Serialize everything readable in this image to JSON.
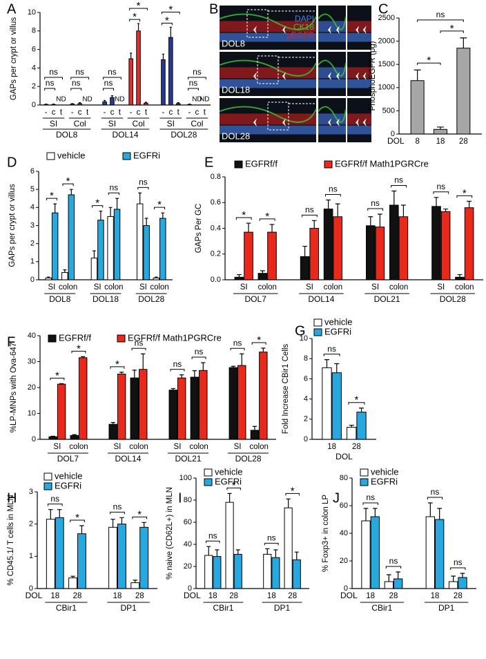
{
  "chart_data": [
    {
      "type": "bar",
      "panel": "A",
      "ylabel": "GAPs per crypt or villus",
      "ylim": [
        0,
        10
      ],
      "yticks": [
        0,
        2,
        4,
        6,
        8,
        10
      ],
      "categories": [
        "-",
        "c",
        "t",
        "-",
        "c",
        "t",
        "-",
        "c",
        "t",
        "-",
        "c",
        "t",
        "-",
        "c",
        "t",
        "-",
        "c",
        "t"
      ],
      "subgroups": [
        "SI",
        "Col",
        "SI",
        "Col",
        "SI",
        "Col"
      ],
      "groups": [
        "DOL8",
        "DOL14",
        "DOL28"
      ],
      "subgroup_colors": [
        "#e03030",
        "#e03030",
        "#2a3a94",
        "#e03030",
        "#2a3a94",
        "#e03030"
      ],
      "values": [
        0.05,
        0.05,
        null,
        0.1,
        0.15,
        null,
        0.35,
        0.8,
        null,
        5.0,
        8.0,
        0.2,
        4.9,
        7.3,
        0.15,
        0.05,
        null,
        null
      ],
      "errors": [
        0.05,
        0.05,
        null,
        0.05,
        0.1,
        null,
        0.15,
        0.2,
        null,
        0.6,
        0.8,
        0.1,
        0.6,
        1.1,
        0.1,
        0.05,
        null,
        null
      ],
      "value_labels": [
        null,
        null,
        "ND",
        null,
        null,
        "ND",
        null,
        null,
        "ND",
        null,
        null,
        null,
        null,
        null,
        null,
        null,
        "ND",
        "ND"
      ],
      "annotations": [
        [
          "ns",
          "ns"
        ],
        [
          "ns",
          "ns"
        ],
        [
          "ns",
          "ns"
        ],
        [
          "*",
          "*"
        ],
        [
          "*",
          "*"
        ],
        [
          "ns",
          "ns"
        ]
      ]
    },
    {
      "type": "image",
      "panel": "B",
      "channels": [
        "DAPI",
        "CK18",
        "pEGFR"
      ],
      "channel_colors": [
        "#4a7ef0",
        "#3cc43c",
        "#e02020"
      ],
      "rows": [
        "DOL8",
        "DOL18",
        "DOL28"
      ]
    },
    {
      "type": "bar",
      "panel": "C",
      "ylabel": "PhosphoEGFR (pg)",
      "xlabel": "DOL",
      "categories": [
        "8",
        "18",
        "28"
      ],
      "values": [
        1150,
        100,
        1850
      ],
      "errors": [
        230,
        50,
        220
      ],
      "color": "#a6a6a6",
      "ylim": [
        0,
        2500
      ],
      "yticks": [
        0,
        500,
        1000,
        1500,
        2000,
        2500
      ],
      "annotations": [
        "*",
        "*",
        "ns"
      ]
    },
    {
      "type": "bar",
      "panel": "D",
      "ylabel": "GAPs per crypt or villus",
      "ylim": [
        0,
        6
      ],
      "yticks": [
        0,
        1,
        2,
        3,
        4,
        5,
        6
      ],
      "categories": [
        "SI",
        "colon",
        "SI",
        "colon",
        "SI",
        "colon"
      ],
      "groups": [
        "DOL8",
        "DOL18",
        "DOL28"
      ],
      "series": [
        {
          "name": "vehicle",
          "color": "#ffffff",
          "values": [
            0.1,
            0.4,
            1.2,
            3.5,
            4.2,
            0.1
          ],
          "errors": [
            0.05,
            0.15,
            0.4,
            0.5,
            0.6,
            0.05
          ]
        },
        {
          "name": "EGFRi",
          "color": "#29a8e0",
          "values": [
            3.7,
            4.7,
            3.3,
            3.9,
            3.0,
            3.4
          ],
          "errors": [
            0.5,
            0.3,
            0.5,
            0.6,
            0.4,
            0.3
          ]
        }
      ],
      "annotations": [
        "*",
        "*",
        "*",
        "ns",
        "ns",
        "*"
      ]
    },
    {
      "type": "bar",
      "panel": "E",
      "ylabel": "GAPs Per GC",
      "ylim": [
        0,
        0.8
      ],
      "yticks": [
        {
          "value": 0,
          "label": "0.0"
        },
        0.2,
        0.4,
        0.6,
        0.8
      ],
      "categories": [
        "SI",
        "colon",
        "SI",
        "colon",
        "SI",
        "colon",
        "SI",
        "colon"
      ],
      "groups": [
        "DOL7",
        "DOL14",
        "DOL21",
        "DOL28"
      ],
      "series": [
        {
          "name": "EGFRf/f",
          "color": "#111111",
          "values": [
            0.02,
            0.05,
            0.18,
            0.55,
            0.42,
            0.58,
            0.57,
            0.02
          ],
          "errors": [
            0.02,
            0.02,
            0.08,
            0.07,
            0.07,
            0.11,
            0.07,
            0.02
          ]
        },
        {
          "name": "EGFRf/f Math1PGRCre",
          "color": "#e8291c",
          "values": [
            0.37,
            0.37,
            0.4,
            0.49,
            0.41,
            0.49,
            0.53,
            0.56
          ],
          "errors": [
            0.07,
            0.06,
            0.06,
            0.1,
            0.1,
            0.09,
            0.02,
            0.05
          ]
        }
      ],
      "annotations": [
        "*",
        "*",
        "ns",
        "ns",
        "ns",
        "ns",
        "ns",
        "*"
      ]
    },
    {
      "type": "bar",
      "panel": "F",
      "ylabel": "%LP-MNPs with Ova-647",
      "ylim": [
        0,
        40
      ],
      "yticks": [
        0,
        10,
        20,
        30,
        40
      ],
      "categories": [
        "SI",
        "colon",
        "SI",
        "colon",
        "SI",
        "colon",
        "SI",
        "colon"
      ],
      "groups": [
        "DOL7",
        "DOL14",
        "DOL21",
        "DOL28"
      ],
      "series": [
        {
          "name": "EGFRf/f",
          "color": "#111111",
          "values": [
            1,
            1.5,
            5.8,
            23.7,
            19,
            24,
            27.7,
            3.5
          ],
          "errors": [
            0.2,
            0.3,
            0.7,
            3,
            0.6,
            2.5,
            0.5,
            1.5
          ]
        },
        {
          "name": "EGFRf/f Math1PGRCre",
          "color": "#e8291c",
          "values": [
            21.3,
            31.5,
            25.2,
            27,
            23.7,
            26.6,
            28.5,
            33.7
          ],
          "errors": [
            0.2,
            0.4,
            0.7,
            6,
            1.2,
            3,
            4.5,
            1.5
          ]
        }
      ],
      "annotations": [
        "*",
        "*",
        "*",
        "ns",
        "ns",
        "ns",
        "ns",
        "*"
      ]
    },
    {
      "type": "bar",
      "panel": "G",
      "ylabel": "Fold Increase CBir1 Cells",
      "xlabel": "DOL",
      "ylim": [
        0,
        10
      ],
      "yticks": [
        0,
        2,
        4,
        6,
        8,
        10
      ],
      "categories": [
        "18",
        "28"
      ],
      "series": [
        {
          "name": "vehicle",
          "color": "#ffffff",
          "values": [
            7.1,
            1.2
          ],
          "errors": [
            0.8,
            0.2
          ]
        },
        {
          "name": "EGFRi",
          "color": "#29a8e0",
          "values": [
            6.6,
            2.7
          ],
          "errors": [
            0.9,
            0.4
          ]
        }
      ],
      "annotations": [
        "ns",
        "*"
      ]
    },
    {
      "type": "bar",
      "panel": "H",
      "ylabel": "% CD45.1/ T cells in MLN",
      "xlabel": "DOL",
      "ylim": [
        0,
        3
      ],
      "yticks": [
        0,
        1,
        2,
        3
      ],
      "categories": [
        "18",
        "28",
        "18",
        "28"
      ],
      "groups": [
        "CBir1",
        "DP1"
      ],
      "series": [
        {
          "name": "vehicle",
          "color": "#ffffff",
          "values": [
            2.15,
            0.33,
            1.9,
            0.18
          ],
          "errors": [
            0.3,
            0.05,
            0.25,
            0.08
          ]
        },
        {
          "name": "EGFRi",
          "color": "#29a8e0",
          "values": [
            2.2,
            1.7,
            2.0,
            1.9
          ],
          "errors": [
            0.25,
            0.25,
            0.2,
            0.15
          ]
        }
      ],
      "annotations": [
        "ns",
        "*",
        "ns",
        "*"
      ]
    },
    {
      "type": "bar",
      "panel": "I",
      "ylabel": "% naive (CD62L+) in MLN",
      "xlabel": "DOL",
      "ylim": [
        0,
        100
      ],
      "yticks": [
        0,
        20,
        40,
        60,
        80,
        100
      ],
      "categories": [
        "18",
        "28",
        "18",
        "28"
      ],
      "groups": [
        "CBir1",
        "DP1"
      ],
      "series": [
        {
          "name": "vehicle",
          "color": "#ffffff",
          "values": [
            30,
            78,
            31,
            73
          ],
          "errors": [
            8,
            8,
            5,
            8
          ]
        },
        {
          "name": "EGFRi",
          "color": "#29a8e0",
          "values": [
            29,
            31,
            28,
            26
          ],
          "errors": [
            6,
            4,
            7,
            7
          ]
        }
      ],
      "annotations": [
        "ns",
        "*",
        "ns",
        "*"
      ]
    },
    {
      "type": "bar",
      "panel": "J",
      "ylabel": "% Foxp3+ in colon LP",
      "xlabel": "DOL",
      "ylim": [
        0,
        80
      ],
      "yticks": [
        0,
        20,
        40,
        60,
        80
      ],
      "categories": [
        "18",
        "28",
        "18",
        "28"
      ],
      "groups": [
        "CBir1",
        "DP1"
      ],
      "series": [
        {
          "name": "vehicle",
          "color": "#ffffff",
          "values": [
            49,
            5,
            52,
            5
          ],
          "errors": [
            9,
            5,
            10,
            4
          ]
        },
        {
          "name": "EGFRi",
          "color": "#29a8e0",
          "values": [
            52,
            7,
            50,
            8
          ],
          "errors": [
            6,
            5,
            8,
            3
          ]
        }
      ],
      "annotations": [
        "ns",
        "ns",
        "ns",
        "ns"
      ]
    }
  ]
}
